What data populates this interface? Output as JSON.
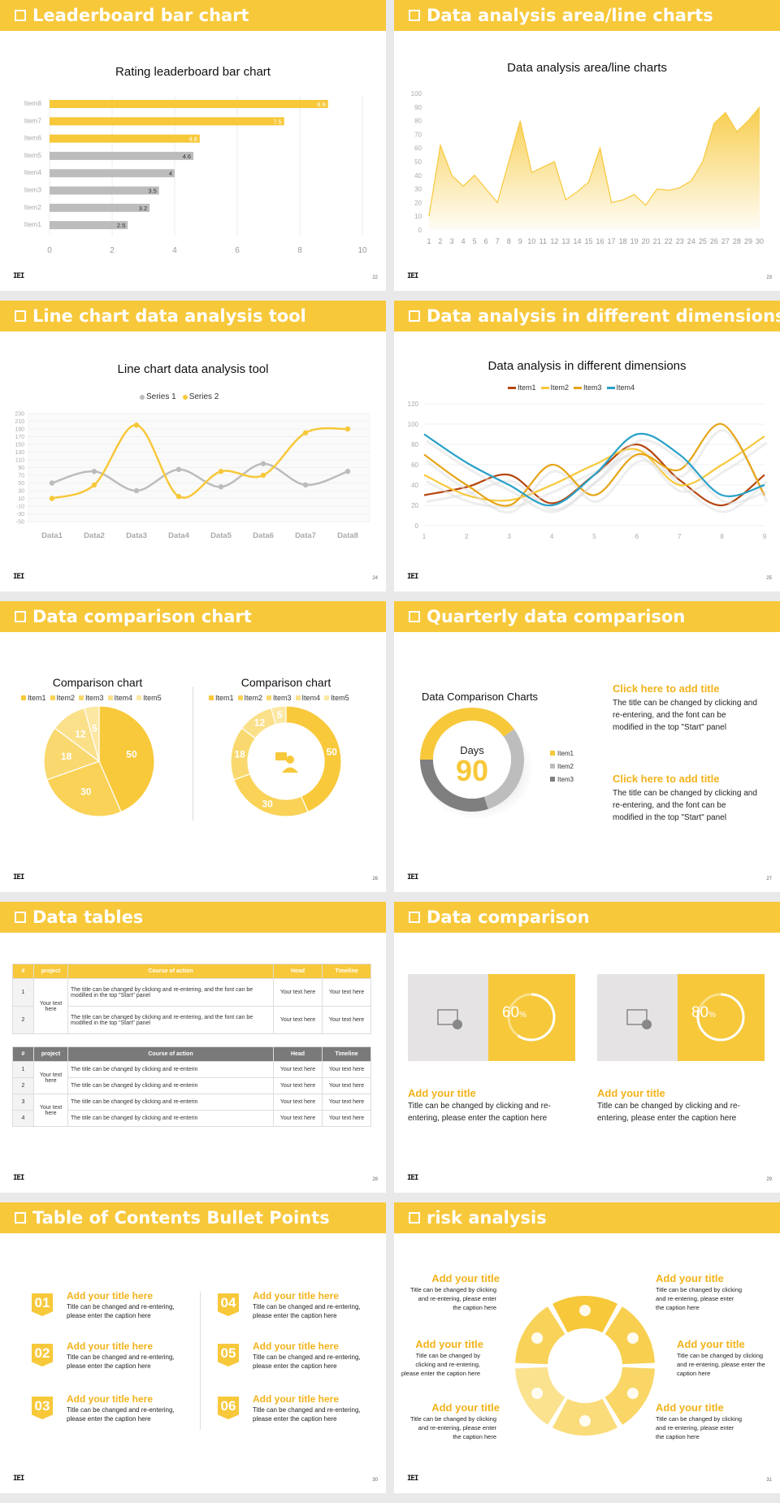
{
  "colors": {
    "accent": "#f7c83a",
    "accent_dark": "#e6a417",
    "gray": "#bcbcbc",
    "blue": "#2aa1c9",
    "rust": "#b5470f"
  },
  "slides": [
    {
      "title": "Leaderboard bar chart",
      "page": "22"
    },
    {
      "title": "Data analysis area/line charts",
      "page": "23"
    },
    {
      "title": "Line chart data analysis tool",
      "page": "24"
    },
    {
      "title": "Data analysis in different dimensions",
      "page": "25"
    },
    {
      "title": "Data comparison chart",
      "page": "26"
    },
    {
      "title": "Quarterly data comparison",
      "page": "27"
    },
    {
      "title": "Data tables",
      "page": "28"
    },
    {
      "title": "Data comparison",
      "page": "29"
    },
    {
      "title": "Table of Contents Bullet Points",
      "page": "30"
    },
    {
      "title": "risk analysis",
      "page": "31"
    }
  ],
  "logo": "IEI",
  "chart_data": [
    {
      "type": "bar",
      "title": "Rating leaderboard bar chart",
      "orientation": "horizontal",
      "categories": [
        "Item8",
        "Item7",
        "Item6",
        "Item5",
        "Item4",
        "Item3",
        "Item2",
        "Item1"
      ],
      "values": [
        8.9,
        7.5,
        4.8,
        4.6,
        4,
        3.5,
        3.2,
        2.5
      ],
      "highlight": [
        true,
        true,
        true,
        false,
        false,
        false,
        false,
        false
      ],
      "xlim": [
        0,
        10
      ],
      "xticks": [
        "0",
        "2",
        "4",
        "6",
        "8",
        "10"
      ]
    },
    {
      "type": "area",
      "title": "Data analysis area/line charts",
      "x": [
        1,
        2,
        3,
        4,
        5,
        6,
        7,
        8,
        9,
        10,
        11,
        12,
        13,
        14,
        15,
        16,
        17,
        18,
        19,
        20,
        21,
        22,
        23,
        24,
        25,
        26,
        27,
        28,
        29,
        30
      ],
      "values": [
        10,
        62,
        40,
        32,
        40,
        30,
        20,
        50,
        80,
        42,
        46,
        50,
        22,
        28,
        35,
        60,
        20,
        22,
        26,
        18,
        30,
        29,
        31,
        36,
        50,
        78,
        86,
        72,
        80,
        90
      ],
      "ylim": [
        0,
        100
      ],
      "yticks": [
        "0",
        "10",
        "20",
        "30",
        "40",
        "50",
        "60",
        "70",
        "80",
        "90",
        "100"
      ]
    },
    {
      "type": "line",
      "title": "Line chart data analysis tool",
      "categories": [
        "Data1",
        "Data2",
        "Data3",
        "Data4",
        "Data5",
        "Data6",
        "Data7",
        "Data8"
      ],
      "series": [
        {
          "name": "Series 1",
          "values": [
            50,
            80,
            30,
            85,
            40,
            100,
            45,
            80
          ]
        },
        {
          "name": "Series 2",
          "values": [
            10,
            45,
            200,
            15,
            80,
            70,
            180,
            190
          ]
        }
      ],
      "ylim": [
        -50,
        230
      ],
      "yticks": [
        "230",
        "210",
        "190",
        "170",
        "150",
        "130",
        "110",
        "90",
        "70",
        "50",
        "30",
        "10",
        "-10",
        "-30",
        "-50"
      ]
    },
    {
      "type": "line",
      "title": "Data analysis in different dimensions",
      "x": [
        1,
        2,
        3,
        4,
        5,
        6,
        7,
        8,
        9
      ],
      "series": [
        {
          "name": "Item1",
          "values": [
            30,
            38,
            50,
            22,
            50,
            80,
            45,
            20,
            50
          ]
        },
        {
          "name": "Item2",
          "values": [
            50,
            30,
            25,
            40,
            60,
            75,
            40,
            60,
            88
          ]
        },
        {
          "name": "Item3",
          "values": [
            70,
            40,
            20,
            60,
            30,
            70,
            55,
            100,
            30
          ]
        },
        {
          "name": "Item4",
          "values": [
            90,
            62,
            40,
            20,
            50,
            90,
            70,
            30,
            40
          ]
        }
      ],
      "ylim": [
        0,
        120
      ],
      "yticks": [
        "0",
        "20",
        "40",
        "60",
        "80",
        "100",
        "120"
      ]
    },
    {
      "type": "pie",
      "title": "Comparison chart",
      "categories": [
        "Item1",
        "Item2",
        "Item3",
        "Item4",
        "Item5"
      ],
      "values": [
        50,
        30,
        18,
        12,
        5
      ]
    },
    {
      "type": "pie",
      "variant": "donut",
      "title": "Comparison chart",
      "categories": [
        "Item1",
        "Item2",
        "Item3",
        "Item4",
        "Item5"
      ],
      "values": [
        50,
        30,
        18,
        12,
        5
      ]
    },
    {
      "type": "pie",
      "variant": "donut",
      "title": "Data Comparison Charts",
      "categories": [
        "Item1",
        "Item2",
        "Item3"
      ],
      "values": [
        40,
        30,
        30
      ],
      "center_label": "Days",
      "center_value": "90"
    }
  ],
  "quarterly": {
    "items": [
      {
        "title": "Click here to add title",
        "text": "The title can be changed by clicking and re-entering, and the font can be modified in the top \"Start\" panel"
      },
      {
        "title": "Click here to add title",
        "text": "The title can be changed by clicking and re-entering, and the font can be modified in the top \"Start\" panel"
      }
    ]
  },
  "tables": {
    "headers": [
      "#",
      "project",
      "Course of action",
      "Head",
      "Timeline"
    ],
    "table1": {
      "group": "Your text here",
      "rows": [
        {
          "num": "1",
          "action": "The title can be changed by clicking and re-entering, and the font can be modified in the top \"Start\" panel",
          "head": "Your text here",
          "timeline": "Your text here"
        },
        {
          "num": "2",
          "action": "The title can be changed by clicking and re-entering, and the font can be modified in the top \"Start\" panel",
          "head": "Your text here",
          "timeline": "Your text here"
        }
      ]
    },
    "table2": {
      "groups": [
        "Your text here",
        "Your text here"
      ],
      "rows": [
        {
          "num": "1",
          "action": "The title can be changed by clicking and re-enterin",
          "head": "Your text here",
          "timeline": "Your text here"
        },
        {
          "num": "2",
          "action": "The title can be changed by clicking and re-enterin",
          "head": "Your text here",
          "timeline": "Your text here"
        },
        {
          "num": "3",
          "action": "The title can be changed by clicking and re-enterin",
          "head": "Your text here",
          "timeline": "Your text here"
        },
        {
          "num": "4",
          "action": "The title can be changed by clicking and re-enterin",
          "head": "Your text here",
          "timeline": "Your text here"
        }
      ]
    }
  },
  "comparison": {
    "cards": [
      {
        "percent": 60,
        "label": "60",
        "unit": "%",
        "title": "Add your title",
        "text": "Title can be changed by clicking and re-entering, please enter the caption here"
      },
      {
        "percent": 80,
        "label": "80",
        "unit": "%",
        "title": "Add your title",
        "text": "Title can be changed by clicking and re-entering, please enter the caption here"
      }
    ]
  },
  "toc": {
    "items": [
      {
        "num": "01",
        "title": "Add your title here",
        "text": "Title can be changed and re-entering, please enter the caption here"
      },
      {
        "num": "02",
        "title": "Add your title here",
        "text": "Title can be changed and re-entering, please enter the caption here"
      },
      {
        "num": "03",
        "title": "Add your title here",
        "text": "Title can be changed and re-entering, please enter the caption here"
      },
      {
        "num": "04",
        "title": "Add your title here",
        "text": "Title can be changed and re-entering, please enter the caption here"
      },
      {
        "num": "05",
        "title": "Add your title here",
        "text": "Title can be changed and re-entering, please enter the caption here"
      },
      {
        "num": "06",
        "title": "Add your title here",
        "text": "Title can be changed and re-entering, please enter the caption here"
      }
    ]
  },
  "risk": {
    "items": [
      {
        "title": "Add your title",
        "text": "Title can be changed by clicking and re-entering, please enter the caption here"
      },
      {
        "title": "Add your title",
        "text": "Title can be changed by clicking and re-entering, please enter the caption here"
      },
      {
        "title": "Add your title",
        "text": "Title can be changed by clicking and re-entering, please enter the caption here"
      },
      {
        "title": "Add your title",
        "text": "Title can be changed by clicking and re-entering, please enter the caption here"
      },
      {
        "title": "Add your title",
        "text": "Title can be changed by clicking and re-entering, please enter the caption here"
      },
      {
        "title": "Add your title",
        "text": "Title can be changed by clicking and re-entering, please enter the caption here"
      }
    ],
    "icons": [
      "money-bag-icon",
      "coins-icon",
      "people-icon",
      "pie-icon",
      "buildings-icon",
      "scale-icon"
    ]
  }
}
